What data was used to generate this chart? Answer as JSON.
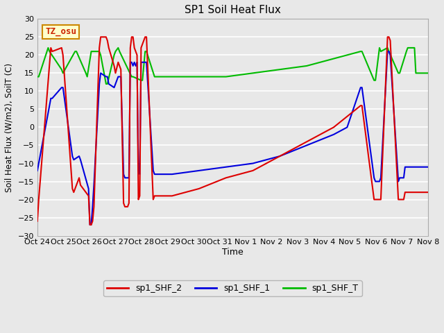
{
  "title": "SP1 Soil Heat Flux",
  "ylabel": "Soil Heat Flux (W/m2), SoilT (C)",
  "xlabel": "Time",
  "ylim": [
    -30,
    30
  ],
  "yticks": [
    -30,
    -25,
    -20,
    -15,
    -10,
    -5,
    0,
    5,
    10,
    15,
    20,
    25,
    30
  ],
  "xtick_labels": [
    "Oct 24",
    "Oct 25",
    "Oct 26",
    "Oct 27",
    "Oct 28",
    "Oct 29",
    "Oct 30",
    "Oct 31",
    "Nov 1",
    "Nov 2",
    "Nov 3",
    "Nov 4",
    "Nov 5",
    "Nov 6",
    "Nov 7",
    "Nov 8"
  ],
  "bg_color": "#e8e8e8",
  "plot_bg_color": "#e8e8e8",
  "grid_color": "#ffffff",
  "annotation_text": "TZ_osu",
  "legend": [
    {
      "label": "sp1_SHF_2",
      "color": "#dd0000"
    },
    {
      "label": "sp1_SHF_1",
      "color": "#0000dd"
    },
    {
      "label": "sp1_SHF_T",
      "color": "#00bb00"
    }
  ],
  "spf2_x": [
    0,
    0.05,
    0.5,
    0.55,
    0.9,
    0.95,
    1.3,
    1.35,
    1.55,
    1.6,
    1.9,
    1.95,
    2.0,
    2.05,
    2.1,
    2.3,
    2.35,
    2.55,
    2.6,
    2.65,
    2.85,
    2.9,
    3.0,
    3.05,
    3.1,
    3.2,
    3.25,
    3.35,
    3.4,
    3.45,
    3.5,
    3.55,
    3.6,
    3.65,
    3.7,
    3.75,
    3.8,
    3.85,
    4.0,
    4.05,
    4.3,
    4.35,
    5.0,
    6.0,
    7.0,
    8.0,
    9.0,
    10.0,
    11.0,
    11.5,
    12.0,
    12.05,
    12.5,
    12.55,
    12.7,
    12.75,
    13.0,
    13.05,
    13.1,
    13.4,
    13.45,
    13.6,
    13.65,
    13.8,
    13.85,
    14.0,
    14.05,
    14.5
  ],
  "spf2_y": [
    -26,
    -20,
    22,
    21,
    22,
    20,
    -17,
    -18,
    -14,
    -16,
    -19,
    -27,
    -27,
    -26,
    -22,
    22,
    25,
    25,
    24,
    22,
    17,
    15,
    18,
    17,
    16,
    -21,
    -22,
    -22,
    -21,
    22,
    25,
    25,
    22,
    21,
    20,
    -20,
    -19,
    22,
    25,
    25,
    -20,
    -19,
    -19,
    -17,
    -14,
    -12,
    -8,
    -4,
    0,
    3,
    6,
    6,
    -20,
    -20,
    -20,
    -20,
    25,
    25,
    24,
    -20,
    -20,
    -20,
    -18,
    -18,
    -18,
    -18,
    -18,
    -18
  ],
  "spf1_x": [
    0,
    0.05,
    0.5,
    0.55,
    0.9,
    0.95,
    1.3,
    1.35,
    1.55,
    1.6,
    1.9,
    1.95,
    2.0,
    2.05,
    2.1,
    2.3,
    2.35,
    2.55,
    2.6,
    2.65,
    2.85,
    2.9,
    3.0,
    3.05,
    3.1,
    3.2,
    3.25,
    3.35,
    3.4,
    3.45,
    3.5,
    3.55,
    3.6,
    3.65,
    3.7,
    3.75,
    3.8,
    3.85,
    4.0,
    4.05,
    4.3,
    4.35,
    5.0,
    6.0,
    7.0,
    8.0,
    9.0,
    10.0,
    11.0,
    11.5,
    12.0,
    12.05,
    12.5,
    12.55,
    12.7,
    12.75,
    13.0,
    13.05,
    13.1,
    13.4,
    13.45,
    13.6,
    13.65,
    13.8,
    13.85,
    14.0,
    14.05,
    14.5
  ],
  "spf1_y": [
    -12,
    -10,
    8,
    8,
    11,
    11,
    -8,
    -9,
    -8,
    -9,
    -17,
    -27,
    -27,
    -22,
    -16,
    12,
    15,
    14,
    14,
    12,
    11,
    12,
    14,
    14,
    14,
    -13,
    -14,
    -14,
    -14,
    18,
    18,
    17,
    18,
    17,
    18,
    -12,
    -13,
    18,
    18,
    18,
    -12,
    -13,
    -13,
    -12,
    -11,
    -10,
    -8,
    -5,
    -2,
    0,
    11,
    11,
    -14,
    -15,
    -15,
    -14,
    21,
    21,
    20,
    -15,
    -14,
    -14,
    -11,
    -11,
    -11,
    -11,
    -11,
    -11
  ],
  "spft_x": [
    0,
    0.05,
    0.4,
    0.45,
    0.9,
    0.95,
    1.4,
    1.45,
    1.8,
    1.85,
    2.0,
    2.05,
    2.3,
    2.35,
    2.55,
    2.6,
    2.85,
    2.9,
    3.0,
    3.05,
    3.5,
    3.55,
    3.85,
    3.9,
    4.0,
    4.05,
    4.35,
    5.0,
    6.0,
    7.0,
    8.0,
    9.0,
    10.0,
    11.0,
    11.5,
    12.0,
    12.05,
    12.5,
    12.55,
    12.7,
    12.75,
    13.0,
    13.05,
    13.4,
    13.45,
    13.7,
    13.75,
    14.0,
    14.05,
    14.5
  ],
  "spft_y": [
    14,
    14,
    22,
    21,
    16,
    15,
    21,
    21,
    15,
    14,
    21,
    21,
    21,
    20,
    12,
    12,
    20,
    21,
    22,
    21,
    14,
    14,
    13,
    13,
    21,
    21,
    14,
    14,
    14,
    14,
    15,
    16,
    17,
    19,
    20,
    21,
    21,
    13,
    13,
    22,
    21,
    22,
    21,
    15,
    15,
    21,
    22,
    22,
    15,
    15
  ]
}
